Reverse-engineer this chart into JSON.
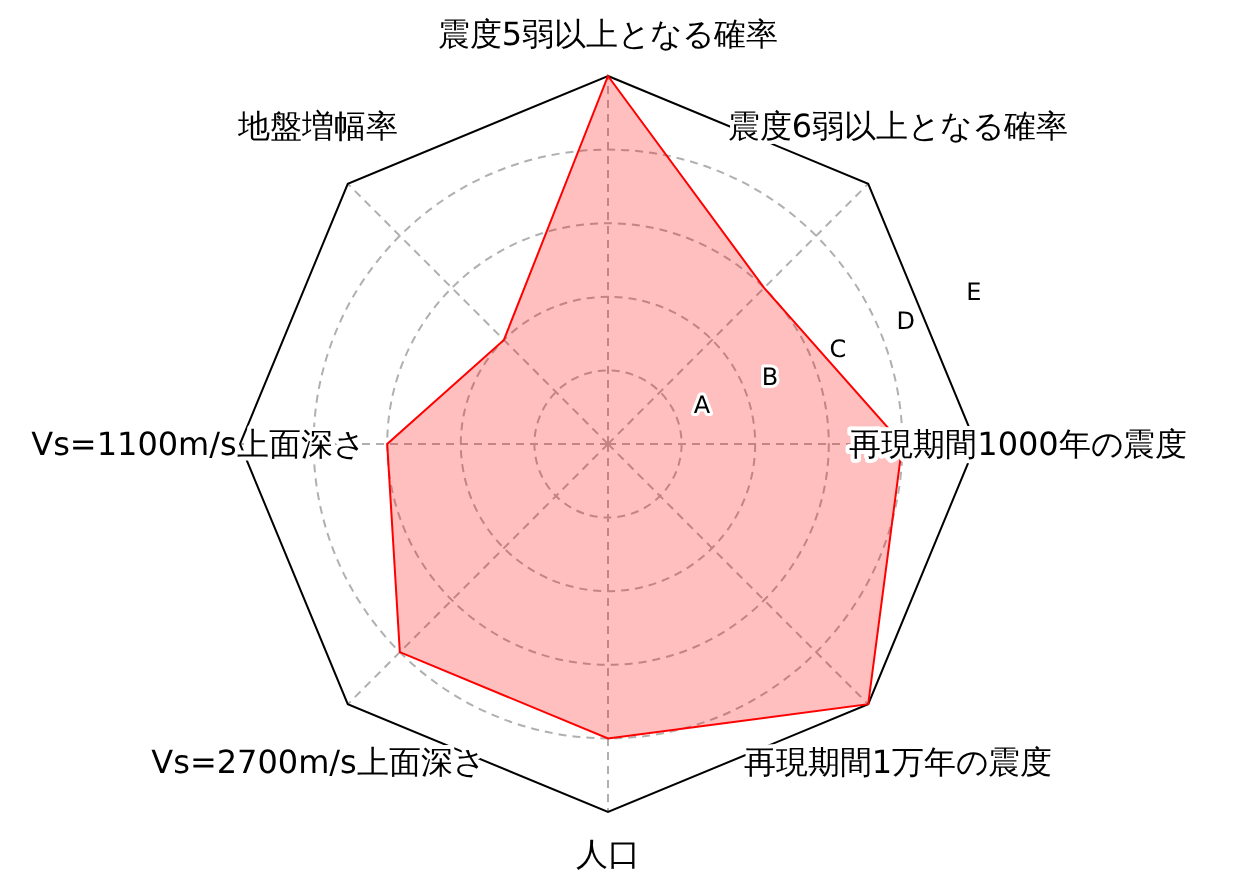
{
  "chart_data": {
    "type": "radar",
    "categories": [
      "震度5弱以上となる確率",
      "震度6弱以上となる確率",
      "再現期間1000年の震度",
      "再現期間1万年の震度",
      "人口",
      "Vs=2700m/s上面深さ",
      "Vs=1100m/s上面深さ",
      "地盤増幅率"
    ],
    "series": [
      {
        "color": "#ff0000",
        "values": [
          5,
          3,
          4,
          5,
          4,
          4,
          3,
          2
        ]
      }
    ],
    "ylim": [
      0,
      5
    ],
    "yticks": [
      {
        "value": 1,
        "label": "A"
      },
      {
        "value": 2,
        "label": "B"
      },
      {
        "value": 3,
        "label": "C"
      },
      {
        "value": 4,
        "label": "D"
      },
      {
        "value": 5,
        "label": "E"
      }
    ],
    "grid": true
  }
}
